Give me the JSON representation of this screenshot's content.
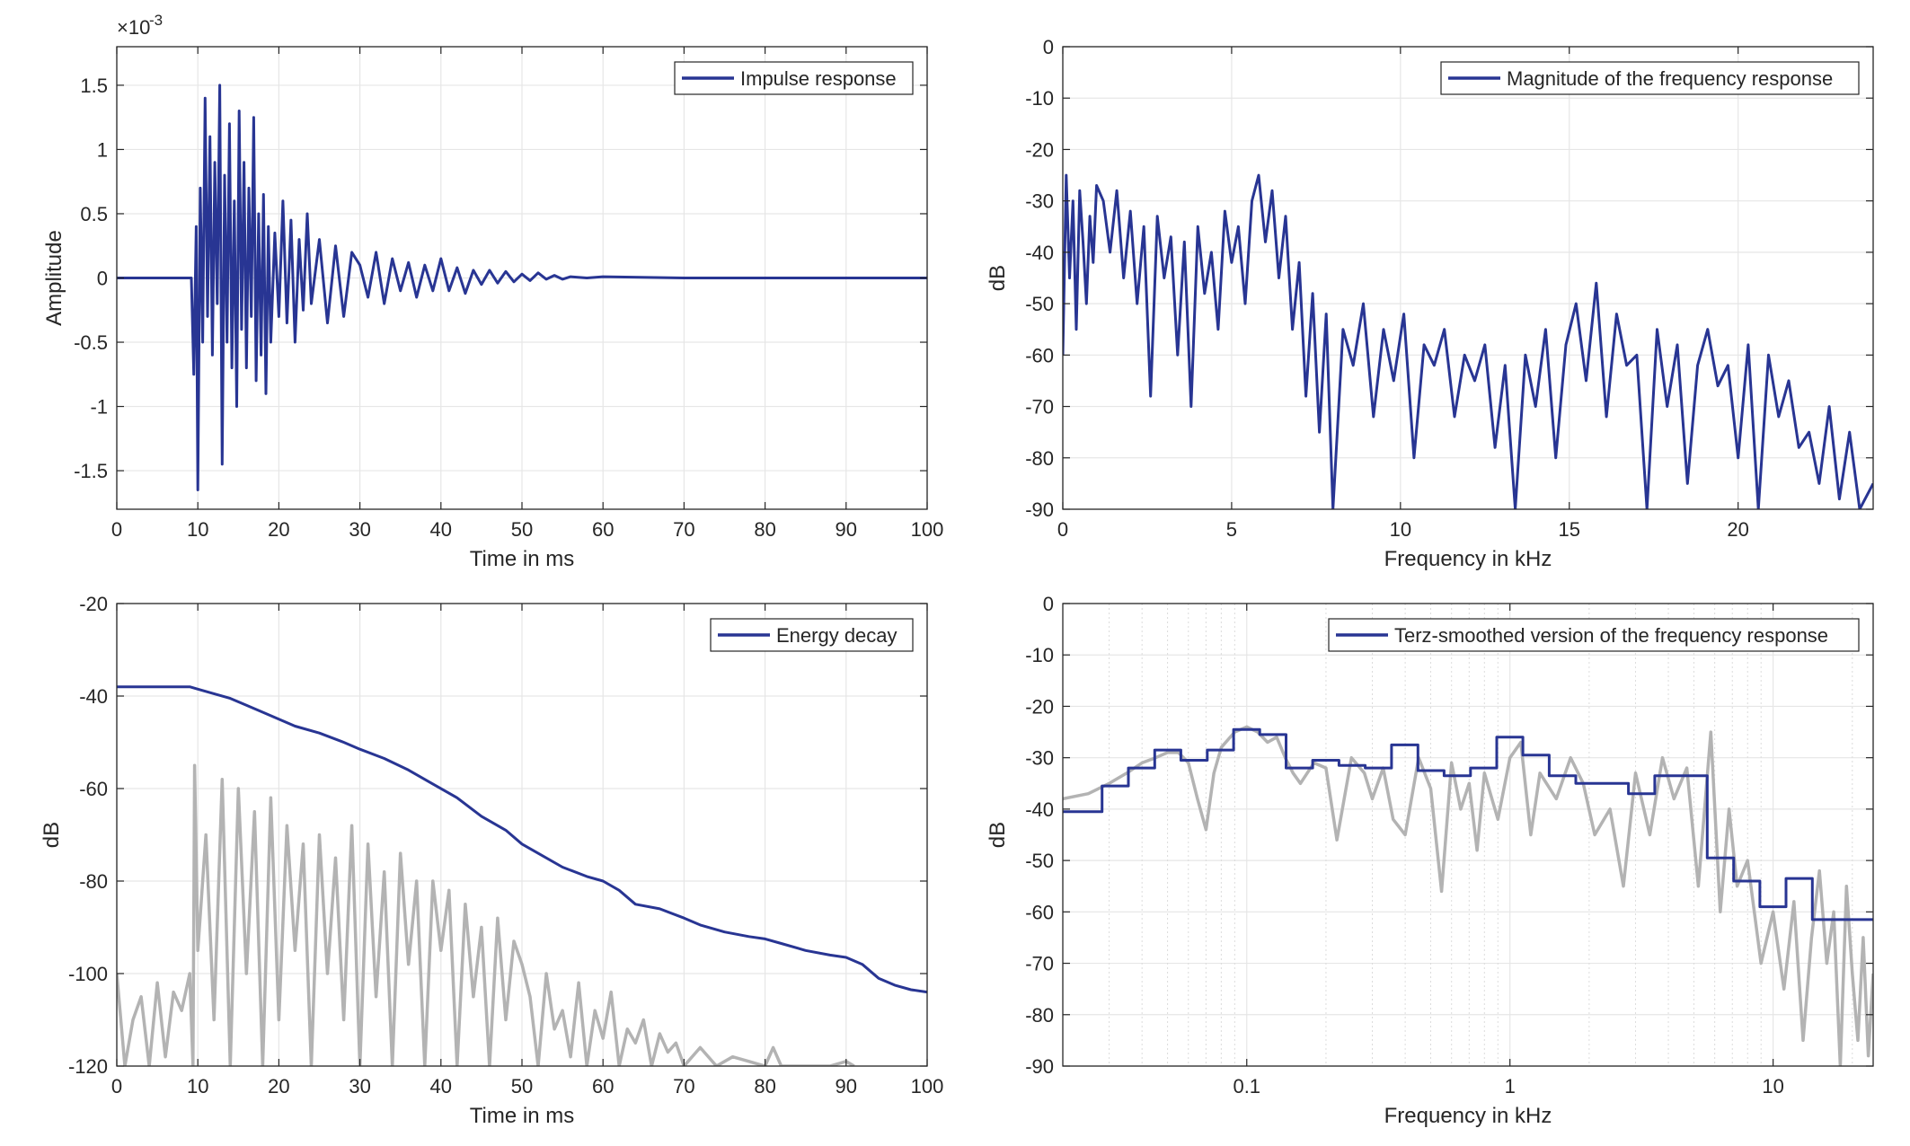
{
  "chart_data": [
    {
      "type": "line",
      "id": "impulse",
      "title": "",
      "xlabel": "Time in ms",
      "ylabel": "Amplitude",
      "exponent_label": "×10",
      "exponent_power": "-3",
      "xlim": [
        0,
        100
      ],
      "ylim": [
        -1.8,
        1.8
      ],
      "xticks": [
        0,
        10,
        20,
        30,
        40,
        50,
        60,
        70,
        80,
        90,
        100
      ],
      "xtick_labels": [
        "0",
        "10",
        "20",
        "30",
        "40",
        "50",
        "60",
        "70",
        "80",
        "90",
        "100"
      ],
      "yticks": [
        -1.5,
        -1,
        -0.5,
        0,
        0.5,
        1,
        1.5
      ],
      "ytick_labels": [
        "-1.5",
        "-1",
        "-0.5",
        "0",
        "0.5",
        "1",
        "1.5"
      ],
      "grid": true,
      "legend_position": "top-right",
      "series": [
        {
          "name": "Impulse response",
          "color": "#283593",
          "x": [
            0,
            5,
            9.2,
            9.5,
            9.8,
            10.0,
            10.3,
            10.6,
            10.9,
            11.2,
            11.5,
            11.8,
            12.1,
            12.4,
            12.7,
            13.0,
            13.3,
            13.6,
            13.9,
            14.2,
            14.5,
            14.8,
            15.1,
            15.4,
            15.7,
            16.0,
            16.3,
            16.6,
            16.9,
            17.2,
            17.5,
            17.8,
            18.1,
            18.4,
            18.7,
            19.0,
            19.5,
            20.0,
            20.5,
            21.0,
            21.5,
            22.0,
            22.5,
            23.0,
            23.5,
            24.0,
            25.0,
            26.0,
            27.0,
            28.0,
            29.0,
            30.0,
            31.0,
            32.0,
            33.0,
            34.0,
            35.0,
            36.0,
            37.0,
            38.0,
            39.0,
            40.0,
            41.0,
            42.0,
            43.0,
            44.0,
            45.0,
            46.0,
            47.0,
            48.0,
            49.0,
            50.0,
            51.0,
            52.0,
            53.0,
            54.0,
            55.0,
            56.0,
            58.0,
            60.0,
            70.0,
            80.0,
            90.0,
            100.0
          ],
          "y": [
            0,
            0,
            0,
            -0.75,
            0.4,
            -1.65,
            0.7,
            -0.5,
            1.4,
            -0.3,
            1.1,
            -0.6,
            0.9,
            -0.2,
            1.5,
            -1.45,
            0.8,
            -0.5,
            1.2,
            -0.7,
            0.6,
            -1.0,
            1.3,
            -0.4,
            0.9,
            -0.7,
            0.7,
            -0.3,
            1.25,
            -0.8,
            0.5,
            -0.6,
            0.65,
            -0.9,
            0.4,
            -0.5,
            0.35,
            -0.3,
            0.6,
            -0.35,
            0.45,
            -0.5,
            0.3,
            -0.25,
            0.5,
            -0.2,
            0.3,
            -0.35,
            0.25,
            -0.3,
            0.2,
            0.1,
            -0.15,
            0.2,
            -0.2,
            0.15,
            -0.1,
            0.12,
            -0.15,
            0.1,
            -0.1,
            0.15,
            -0.1,
            0.08,
            -0.12,
            0.06,
            -0.05,
            0.06,
            -0.04,
            0.05,
            -0.03,
            0.03,
            -0.02,
            0.04,
            -0.01,
            0.02,
            -0.01,
            0.01,
            0.0,
            0.01,
            0.0,
            0.0,
            0.0,
            0.0
          ]
        }
      ]
    },
    {
      "type": "line",
      "id": "magnitude",
      "title": "",
      "xlabel": "Frequency in kHz",
      "ylabel": "dB",
      "xlim": [
        0,
        24
      ],
      "ylim": [
        -90,
        0
      ],
      "xticks": [
        0,
        5,
        10,
        15,
        20
      ],
      "xtick_labels": [
        "0",
        "5",
        "10",
        "15",
        "20"
      ],
      "yticks": [
        0,
        -10,
        -20,
        -30,
        -40,
        -50,
        -60,
        -70,
        -80,
        -90
      ],
      "ytick_labels": [
        "0",
        "-10",
        "-20",
        "-30",
        "-40",
        "-50",
        "-60",
        "-70",
        "-80",
        "-90"
      ],
      "grid": true,
      "legend_position": "top-right",
      "series": [
        {
          "name": "Magnitude of the frequency response",
          "color": "#283593",
          "x": [
            0.0,
            0.1,
            0.2,
            0.3,
            0.4,
            0.5,
            0.6,
            0.7,
            0.8,
            0.9,
            1.0,
            1.2,
            1.4,
            1.6,
            1.8,
            2.0,
            2.2,
            2.4,
            2.6,
            2.8,
            3.0,
            3.2,
            3.4,
            3.6,
            3.8,
            4.0,
            4.2,
            4.4,
            4.6,
            4.8,
            5.0,
            5.2,
            5.4,
            5.6,
            5.8,
            6.0,
            6.2,
            6.4,
            6.6,
            6.8,
            7.0,
            7.2,
            7.4,
            7.6,
            7.8,
            8.0,
            8.3,
            8.6,
            8.9,
            9.2,
            9.5,
            9.8,
            10.1,
            10.4,
            10.7,
            11.0,
            11.3,
            11.6,
            11.9,
            12.2,
            12.5,
            12.8,
            13.1,
            13.4,
            13.7,
            14.0,
            14.3,
            14.6,
            14.9,
            15.2,
            15.5,
            15.8,
            16.1,
            16.4,
            16.7,
            17.0,
            17.3,
            17.6,
            17.9,
            18.2,
            18.5,
            18.8,
            19.1,
            19.4,
            19.7,
            20.0,
            20.3,
            20.6,
            20.9,
            21.2,
            21.5,
            21.8,
            22.1,
            22.4,
            22.7,
            23.0,
            23.3,
            23.6,
            24.0
          ],
          "y": [
            -60,
            -25,
            -45,
            -30,
            -55,
            -28,
            -38,
            -50,
            -33,
            -42,
            -27,
            -30,
            -40,
            -28,
            -45,
            -32,
            -50,
            -35,
            -68,
            -33,
            -45,
            -37,
            -60,
            -38,
            -70,
            -35,
            -48,
            -40,
            -55,
            -32,
            -42,
            -35,
            -50,
            -30,
            -25,
            -38,
            -28,
            -45,
            -33,
            -55,
            -42,
            -68,
            -48,
            -75,
            -52,
            -90,
            -55,
            -62,
            -50,
            -72,
            -55,
            -65,
            -52,
            -80,
            -58,
            -62,
            -55,
            -72,
            -60,
            -65,
            -58,
            -78,
            -62,
            -90,
            -60,
            -70,
            -55,
            -80,
            -58,
            -50,
            -65,
            -46,
            -72,
            -52,
            -62,
            -60,
            -90,
            -55,
            -70,
            -58,
            -85,
            -62,
            -55,
            -66,
            -62,
            -80,
            -58,
            -90,
            -60,
            -72,
            -65,
            -78,
            -75,
            -85,
            -70,
            -88,
            -75,
            -90,
            -85
          ]
        }
      ]
    },
    {
      "type": "line",
      "id": "energy",
      "title": "",
      "xlabel": "Time in ms",
      "ylabel": "dB",
      "xlim": [
        0,
        100
      ],
      "ylim": [
        -120,
        -20
      ],
      "xticks": [
        0,
        10,
        20,
        30,
        40,
        50,
        60,
        70,
        80,
        90,
        100
      ],
      "xtick_labels": [
        "0",
        "10",
        "20",
        "30",
        "40",
        "50",
        "60",
        "70",
        "80",
        "90",
        "100"
      ],
      "yticks": [
        -20,
        -40,
        -60,
        -80,
        -100,
        -120
      ],
      "ytick_labels": [
        "-20",
        "-40",
        "-60",
        "-80",
        "-100",
        "-120"
      ],
      "grid": true,
      "legend_position": "top-right",
      "series": [
        {
          "name": "Energy decay",
          "color": "#283593",
          "x": [
            0,
            5,
            9,
            10,
            12,
            14,
            16,
            18,
            20,
            22,
            25,
            28,
            30,
            33,
            36,
            39,
            42,
            45,
            48,
            50,
            52,
            55,
            58,
            60,
            62,
            64,
            67,
            70,
            72,
            75,
            78,
            80,
            82,
            85,
            88,
            90,
            92,
            94,
            96,
            98,
            100
          ],
          "y": [
            -38,
            -38,
            -38,
            -38.5,
            -39.5,
            -40.5,
            -42,
            -43.5,
            -45,
            -46.5,
            -48,
            -50,
            -51.5,
            -53.5,
            -56,
            -59,
            -62,
            -66,
            -69,
            -72,
            -74,
            -77,
            -79,
            -80,
            -82,
            -85,
            -86,
            -88,
            -89.5,
            -91,
            -92,
            -92.5,
            -93.5,
            -95,
            -96,
            -96.5,
            -98,
            -101,
            -102.5,
            -103.5,
            -104
          ]
        },
        {
          "name": "",
          "color": "#b3b3b3",
          "x": [
            0,
            1,
            2,
            3,
            4,
            5,
            6,
            7,
            8,
            9,
            9.4,
            9.6,
            10,
            11,
            12,
            13,
            14,
            15,
            16,
            17,
            18,
            19,
            20,
            21,
            22,
            23,
            24,
            25,
            26,
            27,
            28,
            29,
            30,
            31,
            32,
            33,
            34,
            35,
            36,
            37,
            38,
            39,
            40,
            41,
            42,
            43,
            44,
            45,
            46,
            47,
            48,
            49,
            50,
            51,
            52,
            53,
            54,
            55,
            56,
            57,
            58,
            59,
            60,
            61,
            62,
            63,
            64,
            65,
            66,
            67,
            68,
            69,
            70,
            72,
            74,
            76,
            78,
            80,
            81,
            82,
            84,
            88,
            90,
            91
          ],
          "y": [
            -100,
            -120,
            -110,
            -105,
            -120,
            -102,
            -118,
            -104,
            -108,
            -100,
            -120,
            -55,
            -95,
            -70,
            -110,
            -58,
            -120,
            -60,
            -100,
            -65,
            -120,
            -62,
            -110,
            -68,
            -95,
            -72,
            -120,
            -70,
            -100,
            -75,
            -110,
            -68,
            -120,
            -72,
            -105,
            -78,
            -120,
            -74,
            -98,
            -80,
            -120,
            -80,
            -95,
            -82,
            -120,
            -85,
            -105,
            -90,
            -120,
            -88,
            -110,
            -93,
            -98,
            -105,
            -120,
            -100,
            -112,
            -108,
            -118,
            -102,
            -120,
            -108,
            -114,
            -104,
            -120,
            -112,
            -115,
            -110,
            -120,
            -113,
            -117,
            -115,
            -120,
            -116,
            -120,
            -118,
            -119,
            -120,
            -116,
            -120,
            -120,
            -120,
            -119,
            -120
          ]
        }
      ]
    },
    {
      "type": "line",
      "id": "terz",
      "title": "",
      "xlabel": "Frequency in kHz",
      "ylabel": "dB",
      "xscale": "log",
      "xlim": [
        0.02,
        24
      ],
      "ylim": [
        -90,
        0
      ],
      "xticks": [
        0.1,
        1,
        10
      ],
      "xtick_labels": [
        "0.1",
        "1",
        "10"
      ],
      "yticks": [
        0,
        -10,
        -20,
        -30,
        -40,
        -50,
        -60,
        -70,
        -80,
        -90
      ],
      "ytick_labels": [
        "0",
        "-10",
        "-20",
        "-30",
        "-40",
        "-50",
        "-60",
        "-70",
        "-80",
        "-90"
      ],
      "grid": true,
      "legend_position": "top-right",
      "series": [
        {
          "name": "Terz-smoothed version of the frequency response",
          "color": "#283593",
          "x": [
            0.02,
            0.0282,
            0.0282,
            0.0355,
            0.0355,
            0.0447,
            0.0447,
            0.0562,
            0.0562,
            0.0708,
            0.0708,
            0.0891,
            0.0891,
            0.112,
            0.112,
            0.141,
            0.141,
            0.178,
            0.178,
            0.224,
            0.224,
            0.282,
            0.282,
            0.355,
            0.355,
            0.447,
            0.447,
            0.562,
            0.562,
            0.708,
            0.708,
            0.891,
            0.891,
            1.12,
            1.12,
            1.41,
            1.41,
            1.78,
            1.78,
            2.24,
            2.24,
            2.82,
            2.82,
            3.55,
            3.55,
            4.47,
            4.47,
            5.62,
            5.62,
            7.08,
            7.08,
            8.91,
            8.91,
            11.2,
            11.2,
            14.1,
            14.1,
            17.8,
            17.8,
            24
          ],
          "y": [
            -40.5,
            -40.5,
            -35.5,
            -35.5,
            -32,
            -32,
            -28.5,
            -28.5,
            -30.5,
            -30.5,
            -28.5,
            -28.5,
            -24.5,
            -24.5,
            -25.5,
            -25.5,
            -32,
            -32,
            -30.5,
            -30.5,
            -31.5,
            -31.5,
            -32,
            -32,
            -27.5,
            -27.5,
            -32.5,
            -32.5,
            -33.5,
            -33.5,
            -32,
            -32,
            -26,
            -26,
            -29.5,
            -29.5,
            -33.5,
            -33.5,
            -35,
            -35,
            -35,
            -35,
            -37,
            -37,
            -33.5,
            -33.5,
            -33.5,
            -33.5,
            -49.5,
            -49.5,
            -54,
            -54,
            -59,
            -59,
            -53.5,
            -53.5,
            -61.5,
            -61.5,
            -61.5,
            -61.5
          ]
        },
        {
          "name": "",
          "color": "#b3b3b3",
          "x": [
            0.02,
            0.025,
            0.03,
            0.035,
            0.04,
            0.045,
            0.05,
            0.055,
            0.06,
            0.065,
            0.07,
            0.075,
            0.08,
            0.09,
            0.1,
            0.11,
            0.12,
            0.13,
            0.14,
            0.15,
            0.16,
            0.18,
            0.2,
            0.22,
            0.25,
            0.28,
            0.3,
            0.33,
            0.36,
            0.4,
            0.45,
            0.5,
            0.55,
            0.6,
            0.65,
            0.7,
            0.75,
            0.8,
            0.9,
            1.0,
            1.1,
            1.2,
            1.3,
            1.5,
            1.7,
            1.9,
            2.1,
            2.4,
            2.7,
            3.0,
            3.4,
            3.8,
            4.2,
            4.7,
            5.2,
            5.8,
            6.3,
            6.8,
            7.3,
            8.0,
            9.0,
            10.0,
            11.0,
            12.0,
            13.0,
            14.0,
            15.0,
            16.0,
            17.0,
            18.0,
            19.0,
            20.0,
            21.0,
            22.0,
            23.0,
            24.0
          ],
          "y": [
            -38,
            -37,
            -35,
            -33,
            -31,
            -30,
            -29,
            -29,
            -31,
            -38,
            -44,
            -33,
            -28,
            -25,
            -24,
            -25,
            -27,
            -26,
            -30,
            -33,
            -35,
            -31,
            -32,
            -46,
            -30,
            -33,
            -38,
            -32,
            -42,
            -45,
            -30,
            -36,
            -56,
            -31,
            -40,
            -35,
            -48,
            -33,
            -42,
            -30,
            -27,
            -45,
            -33,
            -38,
            -30,
            -35,
            -45,
            -40,
            -55,
            -33,
            -45,
            -30,
            -38,
            -32,
            -55,
            -25,
            -60,
            -40,
            -55,
            -50,
            -70,
            -60,
            -75,
            -58,
            -85,
            -65,
            -52,
            -70,
            -60,
            -90,
            -55,
            -72,
            -85,
            -65,
            -88,
            -72
          ]
        }
      ]
    }
  ]
}
